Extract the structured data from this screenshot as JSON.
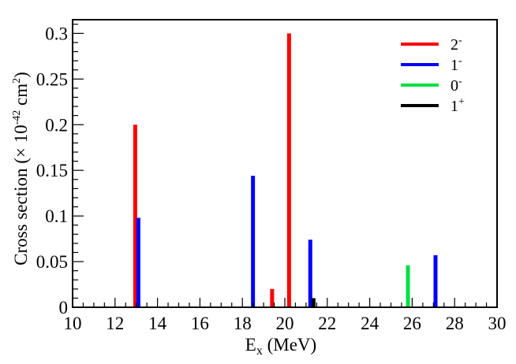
{
  "chart_data": {
    "type": "bar",
    "xlabel": "E",
    "xlabel_sub": "x",
    "xlabel_unit": " (MeV)",
    "ylabel": "Cross section (× 10",
    "ylabel_exp": "-42",
    "ylabel_unit": " cm",
    "ylabel_unit_exp": "2",
    "ylabel_close": ")",
    "xlim": [
      10,
      30
    ],
    "ylim": [
      0,
      0.315
    ],
    "x_ticks": [
      10,
      12,
      14,
      16,
      18,
      20,
      22,
      24,
      26,
      28,
      30
    ],
    "x_tick_labels": [
      "10",
      "12",
      "14",
      "16",
      "18",
      "20",
      "22",
      "24",
      "26",
      "28",
      "30"
    ],
    "y_ticks": [
      0,
      0.05,
      0.1,
      0.15,
      0.2,
      0.25,
      0.3
    ],
    "y_tick_labels": [
      "0",
      "0.05",
      "0.1",
      "0.15",
      "0.2",
      "0.25",
      "0.3"
    ],
    "grid": false,
    "legend_position": "top-right",
    "series": [
      {
        "name": "2",
        "name_sup": "-",
        "color": "#ff0000",
        "points": [
          {
            "x": 12.95,
            "y": 0.2
          },
          {
            "x": 19.4,
            "y": 0.02
          },
          {
            "x": 20.2,
            "y": 0.3
          }
        ]
      },
      {
        "name": "1",
        "name_sup": "-",
        "color": "#0000ff",
        "points": [
          {
            "x": 13.1,
            "y": 0.098
          },
          {
            "x": 18.5,
            "y": 0.144
          },
          {
            "x": 21.2,
            "y": 0.074
          },
          {
            "x": 27.1,
            "y": 0.057
          }
        ]
      },
      {
        "name": "0",
        "name_sup": "-",
        "color": "#00e040",
        "points": [
          {
            "x": 25.8,
            "y": 0.046
          }
        ]
      },
      {
        "name": "1",
        "name_sup": "+",
        "color": "#000000",
        "points": [
          {
            "x": 21.35,
            "y": 0.01
          }
        ]
      }
    ]
  }
}
